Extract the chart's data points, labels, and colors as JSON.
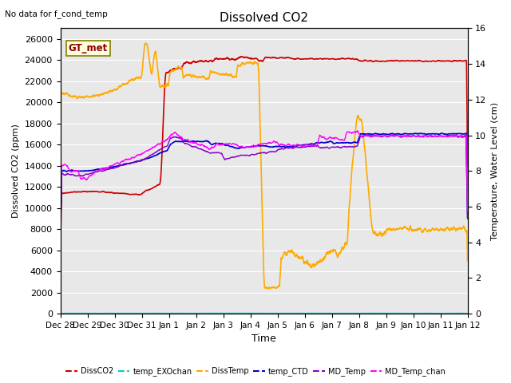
{
  "title": "Dissolved CO2",
  "top_left_text": "No data for f_cond_temp",
  "annotation_text": "GT_met",
  "xlabel": "Time",
  "ylabel_left": "Dissolved CO2 (ppm)",
  "ylabel_right": "Temperature, Water Level (cm)",
  "ylim_left": [
    0,
    27000
  ],
  "ylim_right": [
    0,
    16
  ],
  "yticks_left": [
    0,
    2000,
    4000,
    6000,
    8000,
    10000,
    12000,
    14000,
    16000,
    18000,
    20000,
    22000,
    24000,
    26000
  ],
  "yticks_right": [
    0,
    2,
    4,
    6,
    8,
    10,
    12,
    14,
    16
  ],
  "xtick_labels": [
    "Dec 28",
    "Dec 29",
    "Dec 30",
    "Dec 31",
    "Jan 1",
    "Jan 2",
    "Jan 3",
    "Jan 4",
    "Jan 5",
    "Jan 6",
    "Jan 7",
    "Jan 8",
    "Jan 9",
    "Jan 10",
    "Jan 11",
    "Jan 12"
  ],
  "colors": {
    "DissCO2": "#cc0000",
    "temp_EXOchan": "#00cccc",
    "DissTemp": "#ffaa00",
    "temp_CTD": "#0000cc",
    "MD_Temp": "#8800cc",
    "MD_Temp_chan": "#ff00ff"
  },
  "background_color": "#e8e8e8",
  "grid_color": "#ffffff"
}
